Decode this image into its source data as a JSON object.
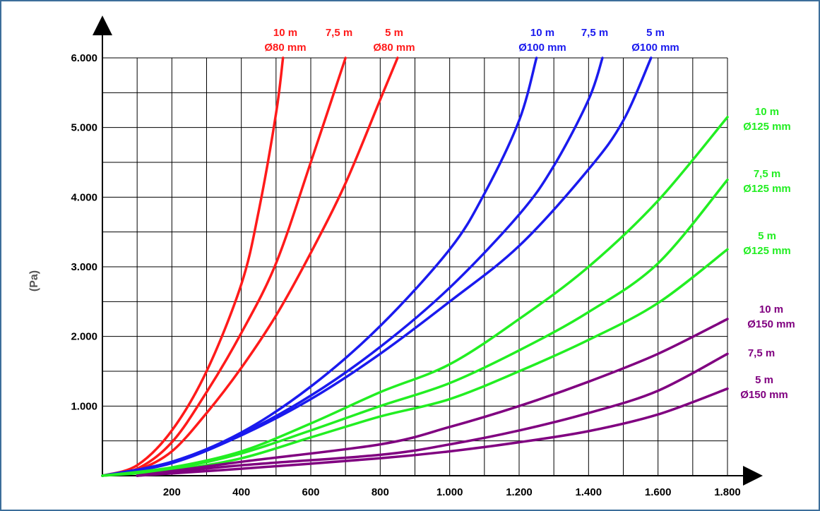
{
  "chart_data": {
    "type": "line",
    "title": "",
    "xlabel": "",
    "ylabel": "(Pa)",
    "xlim": [
      0,
      1800
    ],
    "ylim": [
      0,
      6000
    ],
    "x_ticks": [
      {
        "value": 200,
        "label": "200"
      },
      {
        "value": 400,
        "label": "400"
      },
      {
        "value": 600,
        "label": "600"
      },
      {
        "value": 800,
        "label": "800"
      },
      {
        "value": 1000,
        "label": "1.000"
      },
      {
        "value": 1200,
        "label": "1.200"
      },
      {
        "value": 1400,
        "label": "1.400"
      },
      {
        "value": 1600,
        "label": "1.600"
      },
      {
        "value": 1800,
        "label": "1.800"
      }
    ],
    "y_ticks": [
      {
        "value": 1000,
        "label": "1.000"
      },
      {
        "value": 2000,
        "label": "2.000"
      },
      {
        "value": 3000,
        "label": "3.000"
      },
      {
        "value": 4000,
        "label": "4.000"
      },
      {
        "value": 5000,
        "label": "5.000"
      },
      {
        "value": 6000,
        "label": "6.000"
      }
    ],
    "grid": true,
    "colors": {
      "d80": "#ff1a1a",
      "d100": "#1a1aee",
      "d125": "#22ee22",
      "d150": "#800080"
    },
    "series": [
      {
        "length": "10 m",
        "diameter": "Ø80 mm",
        "color": "d80",
        "x": [
          0,
          100,
          200,
          300,
          400,
          450,
          500,
          520
        ],
        "y": [
          0,
          150,
          650,
          1500,
          2750,
          3800,
          5200,
          6000
        ]
      },
      {
        "length": "7,5 m",
        "diameter": "",
        "color": "d80",
        "x": [
          0,
          100,
          200,
          300,
          400,
          500,
          600,
          700
        ],
        "y": [
          0,
          100,
          480,
          1200,
          2050,
          3050,
          4500,
          6000
        ]
      },
      {
        "length": "5 m",
        "diameter": "Ø80 mm",
        "color": "d80",
        "x": [
          0,
          100,
          200,
          300,
          400,
          500,
          600,
          700,
          800,
          850
        ],
        "y": [
          0,
          80,
          350,
          900,
          1550,
          2300,
          3200,
          4200,
          5400,
          6000
        ]
      },
      {
        "length": "10 m",
        "diameter": "Ø100 mm",
        "color": "d100",
        "x": [
          0,
          200,
          400,
          600,
          800,
          1000,
          1100,
          1200,
          1250
        ],
        "y": [
          0,
          200,
          620,
          1280,
          2150,
          3250,
          4050,
          5100,
          6000
        ]
      },
      {
        "length": "7,5 m",
        "diameter": "",
        "color": "d100",
        "x": [
          0,
          200,
          400,
          600,
          800,
          1000,
          1200,
          1300,
          1400,
          1440
        ],
        "y": [
          0,
          200,
          600,
          1150,
          1850,
          2700,
          3750,
          4450,
          5400,
          6000
        ]
      },
      {
        "length": "5 m",
        "diameter": "Ø100 mm",
        "color": "d100",
        "x": [
          0,
          200,
          400,
          600,
          800,
          1000,
          1200,
          1400,
          1500,
          1580
        ],
        "y": [
          0,
          180,
          580,
          1100,
          1750,
          2500,
          3300,
          4400,
          5100,
          6000
        ]
      },
      {
        "length": "10 m",
        "diameter": "Ø125 mm",
        "color": "d125",
        "x": [
          0,
          200,
          400,
          600,
          800,
          1000,
          1200,
          1400,
          1600,
          1800
        ],
        "y": [
          0,
          120,
          350,
          750,
          1200,
          1600,
          2250,
          3000,
          3950,
          5150
        ]
      },
      {
        "length": "7,5 m",
        "diameter": "Ø125 mm",
        "color": "d125",
        "x": [
          0,
          200,
          400,
          600,
          800,
          1000,
          1200,
          1400,
          1600,
          1800
        ],
        "y": [
          0,
          100,
          320,
          650,
          1000,
          1330,
          1800,
          2350,
          3050,
          4250
        ]
      },
      {
        "length": "5 m",
        "diameter": "Ø125 mm",
        "color": "d125",
        "x": [
          0,
          200,
          400,
          600,
          800,
          1000,
          1200,
          1400,
          1600,
          1800
        ],
        "y": [
          0,
          80,
          250,
          550,
          850,
          1100,
          1500,
          1950,
          2480,
          3250
        ]
      },
      {
        "length": "10 m",
        "diameter": "Ø150 mm",
        "color": "d150",
        "x": [
          100,
          400,
          800,
          1000,
          1200,
          1400,
          1600,
          1800
        ],
        "y": [
          0,
          200,
          450,
          700,
          1000,
          1350,
          1750,
          2250
        ]
      },
      {
        "length": "7,5 m",
        "diameter": "",
        "color": "d150",
        "x": [
          100,
          400,
          800,
          1000,
          1200,
          1400,
          1600,
          1800
        ],
        "y": [
          0,
          150,
          300,
          450,
          650,
          900,
          1220,
          1750
        ]
      },
      {
        "length": "5 m",
        "diameter": "Ø150 mm",
        "color": "d150",
        "x": [
          100,
          400,
          800,
          1000,
          1200,
          1400,
          1600,
          1800
        ],
        "y": [
          0,
          100,
          250,
          350,
          480,
          640,
          880,
          1250
        ]
      }
    ]
  }
}
